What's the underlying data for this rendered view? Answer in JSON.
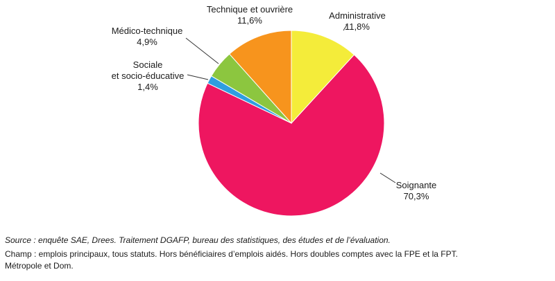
{
  "chart_data": {
    "type": "pie",
    "title": "",
    "start_angle_deg": 0,
    "direction": "clockwise",
    "slices": [
      {
        "label": "Administrative",
        "value": 11.8,
        "value_label": "11,8%",
        "color": "#f4ec3a"
      },
      {
        "label": "Soignante",
        "value": 70.3,
        "value_label": "70,3%",
        "color": "#ee1660"
      },
      {
        "label": "Sociale",
        "label2": "et socio-éducative",
        "value": 1.4,
        "value_label": "1,4%",
        "color": "#2f9ee0"
      },
      {
        "label": "Médico-technique",
        "value": 4.9,
        "value_label": "4,9%",
        "color": "#8cc63f"
      },
      {
        "label": "Technique et ouvrière",
        "value": 11.6,
        "value_label": "11,6%",
        "color": "#f7941d"
      }
    ]
  },
  "notes": {
    "source_lead": "Source :",
    "source_text": " enquête SAE, Drees. Traitement DGAFP, bureau des statistiques, des études et de l’évaluation.",
    "champ_line1": "Champ : emplois principaux, tous statuts. Hors bénéficiaires d’emplois aidés. Hors doubles comptes avec la FPE et la FPT.",
    "champ_line2": "Métropole et Dom."
  }
}
